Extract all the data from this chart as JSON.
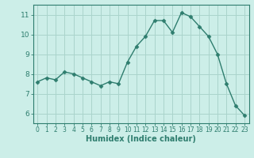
{
  "x": [
    0,
    1,
    2,
    3,
    4,
    5,
    6,
    7,
    8,
    9,
    10,
    11,
    12,
    13,
    14,
    15,
    16,
    17,
    18,
    19,
    20,
    21,
    22,
    23
  ],
  "y": [
    7.6,
    7.8,
    7.7,
    8.1,
    8.0,
    7.8,
    7.6,
    7.4,
    7.6,
    7.5,
    8.6,
    9.4,
    9.9,
    10.7,
    10.7,
    10.1,
    11.1,
    10.9,
    10.4,
    9.9,
    9.0,
    7.5,
    6.4,
    5.9
  ],
  "line_color": "#2e7d6e",
  "marker": "D",
  "marker_size": 2.5,
  "bg_color": "#cceee8",
  "grid_color": "#aad4cc",
  "axis_color": "#2e7d6e",
  "xlabel": "Humidex (Indice chaleur)",
  "xlabel_fontsize": 7,
  "tick_fontsize": 6.5,
  "ylim": [
    5.5,
    11.5
  ],
  "xlim": [
    -0.5,
    23.5
  ],
  "yticks": [
    6,
    7,
    8,
    9,
    10,
    11
  ],
  "xticks": [
    0,
    1,
    2,
    3,
    4,
    5,
    6,
    7,
    8,
    9,
    10,
    11,
    12,
    13,
    14,
    15,
    16,
    17,
    18,
    19,
    20,
    21,
    22,
    23
  ]
}
